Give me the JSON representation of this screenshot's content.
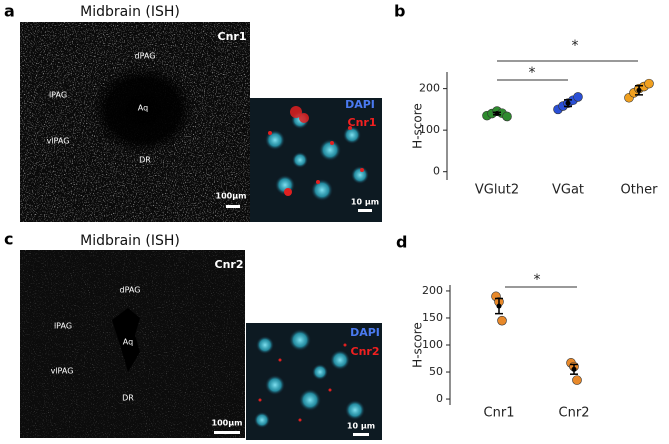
{
  "panel_labels": [
    "a",
    "b",
    "c",
    "d"
  ],
  "images": [
    {
      "title": "Midbrain (ISH)",
      "gene": "Cnr1",
      "regions": [
        "dPAG",
        "lPAG",
        "Aq",
        "vlPAG",
        "DR"
      ],
      "scale_bar": "100µm",
      "inset": {
        "stain": "DAPI",
        "gene": "Cnr1",
        "scale_bar": "10 µm"
      }
    },
    {
      "title": "Midbrain (ISH)",
      "gene": "Cnr2",
      "regions": [
        "dPAG",
        "lPAG",
        "Aq",
        "vlPAG",
        "DR"
      ],
      "scale_bar": "100µm",
      "inset": {
        "stain": "DAPI",
        "gene": "Cnr2",
        "scale_bar": "10 µm"
      }
    }
  ],
  "chart_data": [
    {
      "type": "dot",
      "ylabel": "H-score",
      "categories": [
        "VGlut2",
        "VGat",
        "Other"
      ],
      "points": [
        [
          135,
          140,
          146,
          141,
          133
        ],
        [
          150,
          158,
          165,
          172,
          180
        ],
        [
          178,
          190,
          200,
          205,
          212
        ]
      ],
      "colors": [
        "#2e8b2e",
        "#2a4fd6",
        "#f0a020"
      ],
      "means": [
        140,
        165,
        196
      ],
      "errors": [
        3,
        8,
        11
      ],
      "ylim": [
        -20,
        240
      ],
      "yticks": [
        0,
        100,
        200
      ],
      "annotations": [
        "*",
        "*"
      ]
    },
    {
      "type": "dot",
      "ylabel": "H-score",
      "categories": [
        "Cnr1",
        "Cnr2"
      ],
      "points": [
        [
          190,
          180,
          145
        ],
        [
          67,
          60,
          35
        ]
      ],
      "colors": [
        "#e8892a",
        "#e8892a"
      ],
      "means": [
        172,
        55
      ],
      "errors": [
        14,
        9
      ],
      "ylim": [
        -11,
        211
      ],
      "yticks": [
        0,
        50,
        100,
        150,
        200
      ],
      "annotations": [
        "*"
      ]
    }
  ]
}
